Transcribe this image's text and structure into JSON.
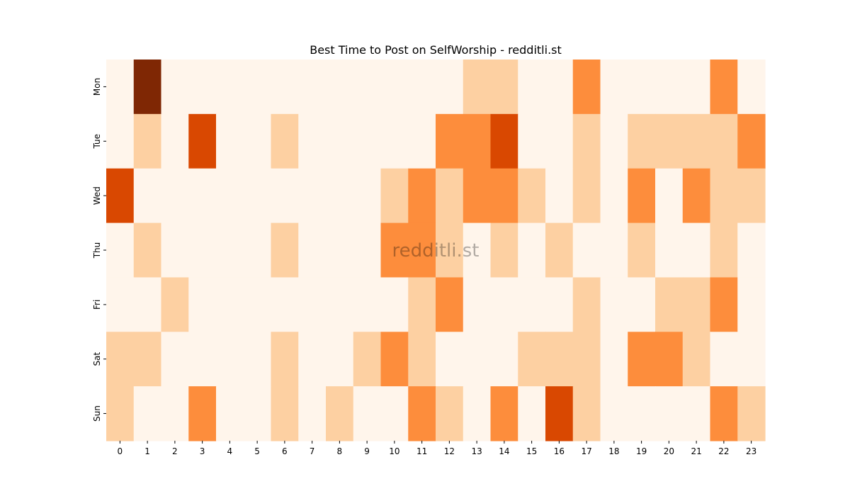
{
  "chart_data": {
    "type": "heatmap",
    "title": "Best Time to Post on SelfWorship - redditli.st",
    "watermark": "redditli.st",
    "xlabel": "",
    "ylabel": "",
    "x_labels": [
      "0",
      "1",
      "2",
      "3",
      "4",
      "5",
      "6",
      "7",
      "8",
      "9",
      "10",
      "11",
      "12",
      "13",
      "14",
      "15",
      "16",
      "17",
      "18",
      "19",
      "20",
      "21",
      "22",
      "23"
    ],
    "y_labels": [
      "Mon",
      "Tue",
      "Wed",
      "Thu",
      "Fri",
      "Sat",
      "Sun"
    ],
    "values": [
      [
        0,
        4,
        0,
        0,
        0,
        0,
        0,
        0,
        0,
        0,
        0,
        0,
        0,
        1,
        1,
        0,
        0,
        2,
        0,
        0,
        0,
        0,
        2,
        0
      ],
      [
        0,
        1,
        0,
        3,
        0,
        0,
        1,
        0,
        0,
        0,
        0,
        0,
        2,
        2,
        3,
        0,
        0,
        1,
        0,
        1,
        1,
        1,
        1,
        2
      ],
      [
        3,
        0,
        0,
        0,
        0,
        0,
        0,
        0,
        0,
        0,
        1,
        2,
        1,
        2,
        2,
        1,
        0,
        1,
        0,
        2,
        0,
        2,
        1,
        1
      ],
      [
        0,
        1,
        0,
        0,
        0,
        0,
        1,
        0,
        0,
        0,
        2,
        2,
        1,
        0,
        1,
        0,
        1,
        0,
        0,
        1,
        0,
        0,
        1,
        0
      ],
      [
        0,
        0,
        1,
        0,
        0,
        0,
        0,
        0,
        0,
        0,
        0,
        1,
        2,
        0,
        0,
        0,
        0,
        1,
        0,
        0,
        1,
        1,
        2,
        0
      ],
      [
        1,
        1,
        0,
        0,
        0,
        0,
        1,
        0,
        0,
        1,
        2,
        1,
        0,
        0,
        0,
        1,
        1,
        1,
        0,
        2,
        2,
        1,
        0,
        0
      ],
      [
        1,
        0,
        0,
        2,
        0,
        0,
        1,
        0,
        1,
        0,
        0,
        2,
        1,
        0,
        2,
        0,
        3,
        1,
        0,
        0,
        0,
        0,
        2,
        1
      ]
    ],
    "value_range": [
      0,
      4
    ],
    "colormap": "Oranges",
    "level_colors": [
      "#fff5eb",
      "#fdd0a2",
      "#fd8d3c",
      "#d94801",
      "#7f2704"
    ],
    "colorbar": false,
    "grid": false
  }
}
